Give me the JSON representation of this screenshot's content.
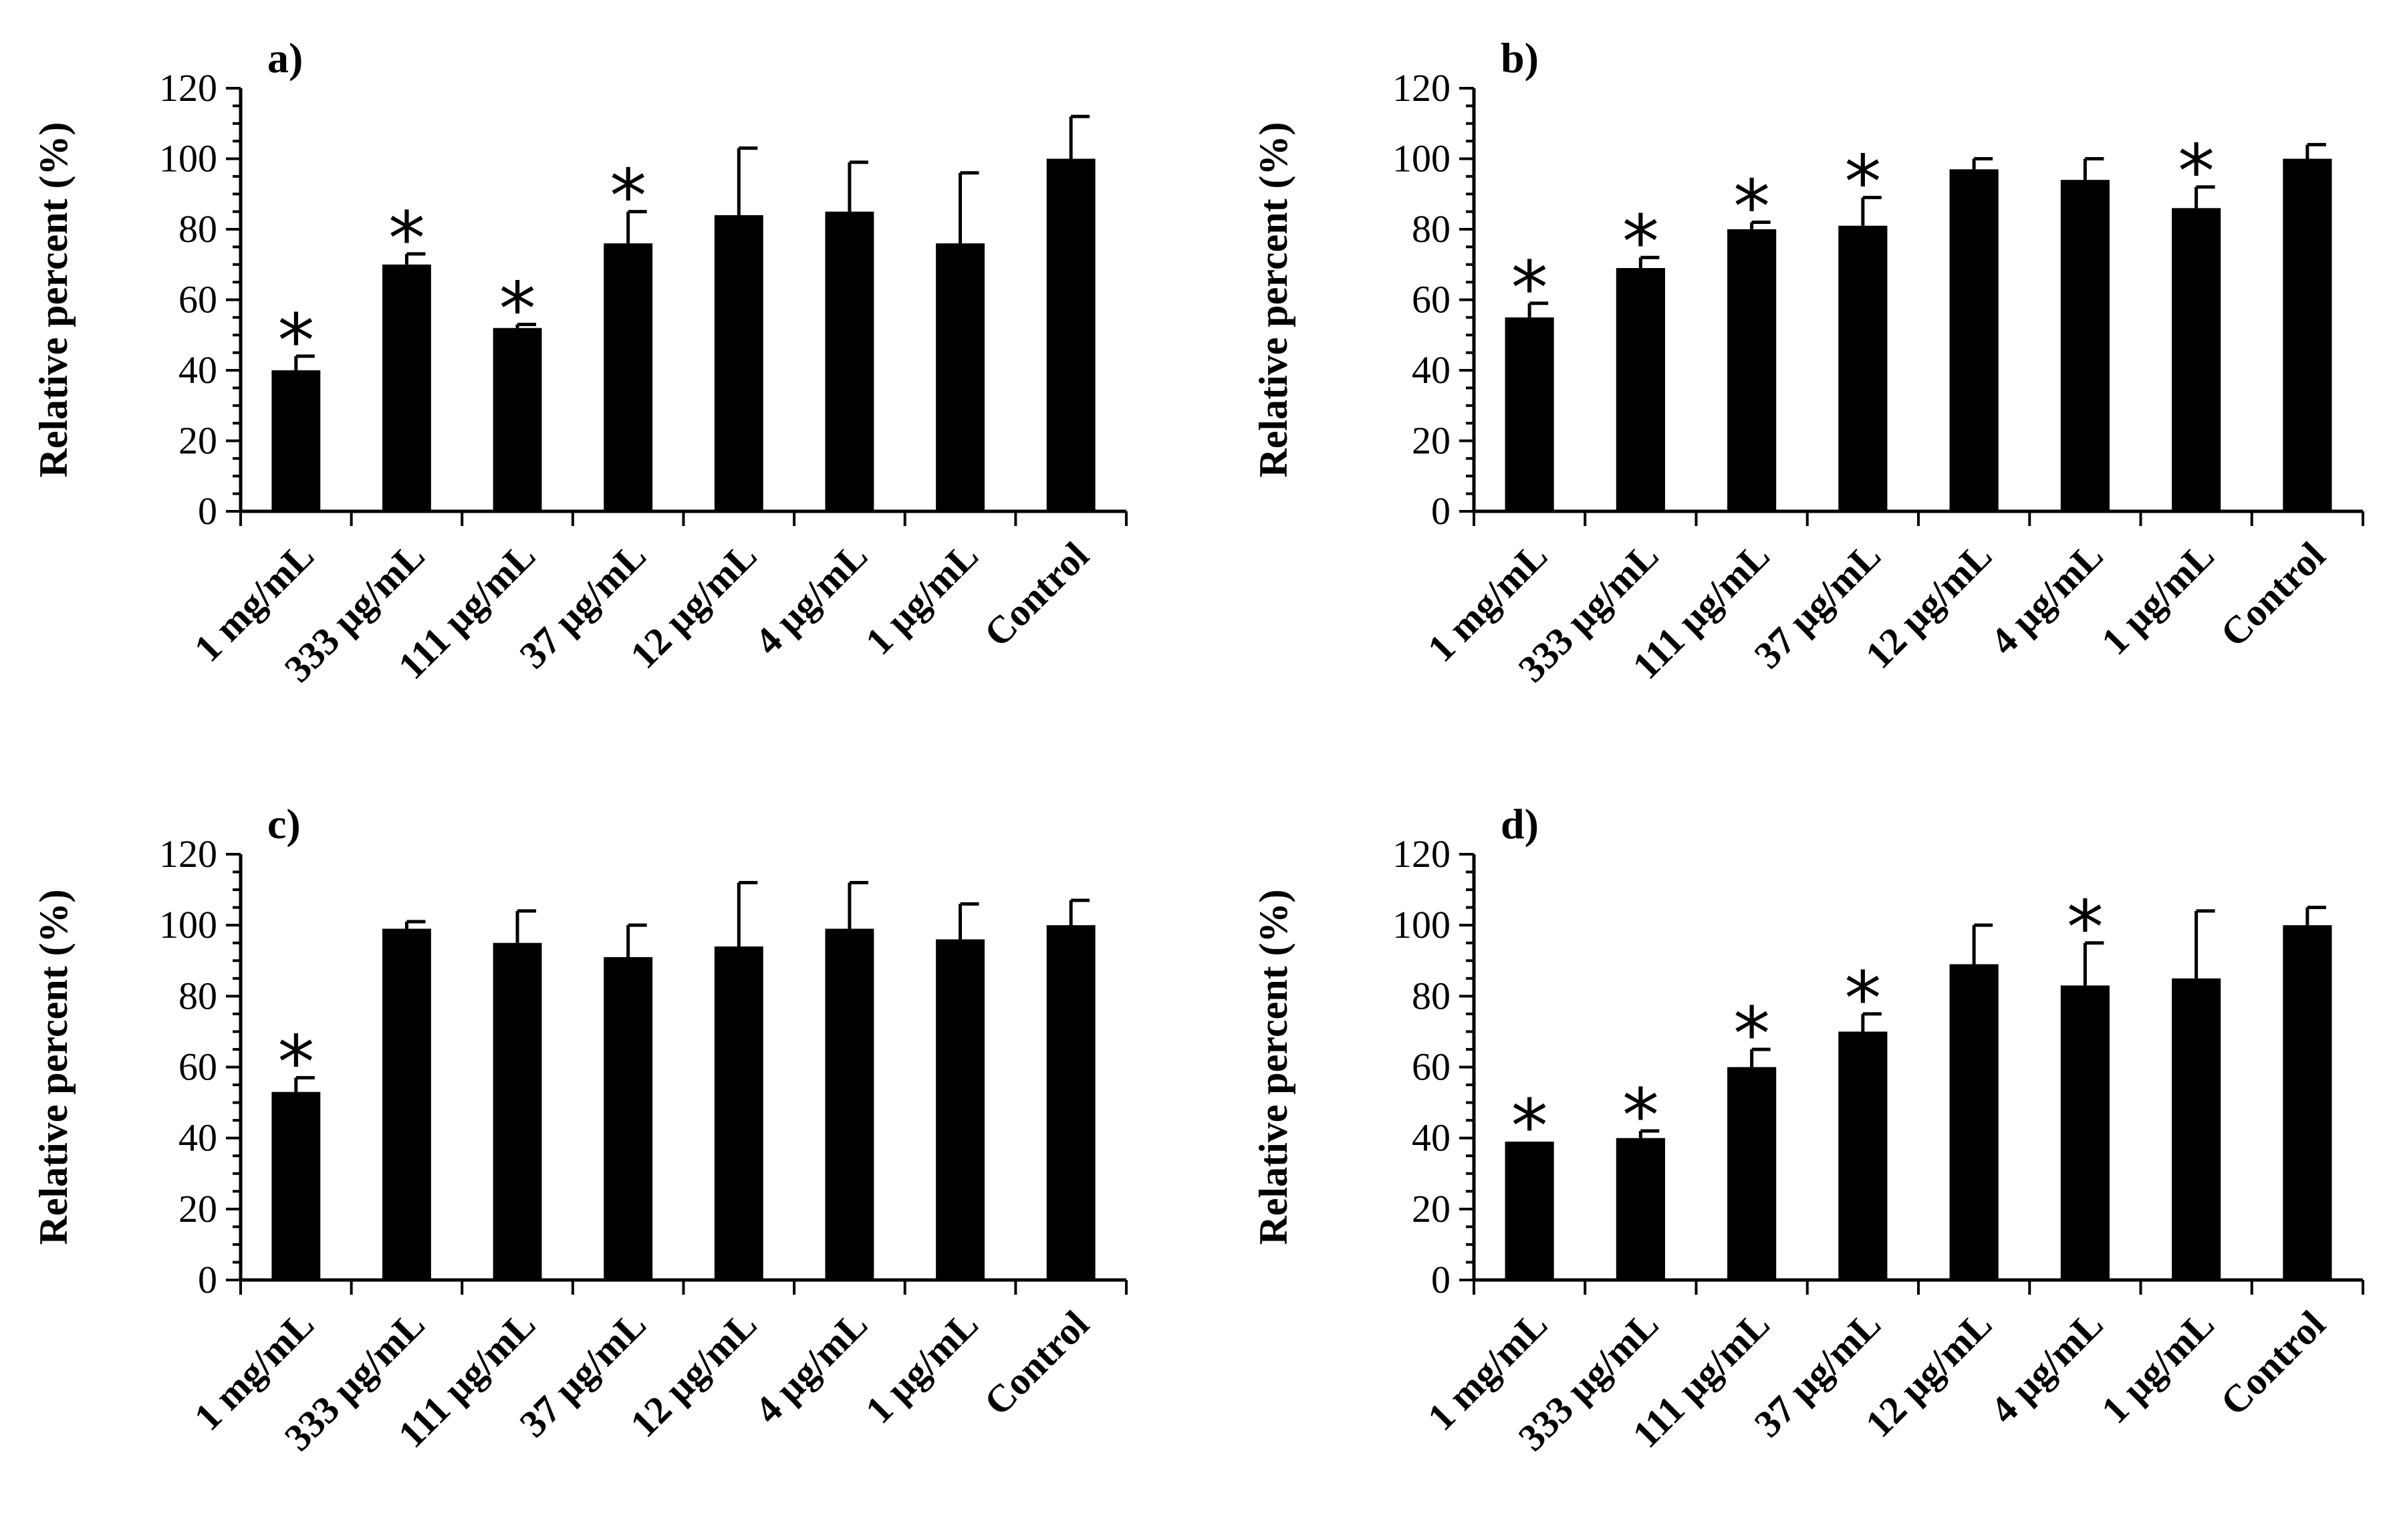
{
  "chart_data": [
    {
      "type": "bar",
      "panel": "a)",
      "categories": [
        "1 mg/mL",
        "333 µg/mL",
        "111 µg/mL",
        "37 µg/mL",
        "12 µg/mL",
        "4 µg/mL",
        "1 µg/mL",
        "Control"
      ],
      "values": [
        40,
        70,
        52,
        76,
        84,
        85,
        76,
        100
      ],
      "errors": [
        4,
        3,
        1,
        9,
        19,
        14,
        20,
        12
      ],
      "significant": [
        true,
        true,
        true,
        true,
        false,
        false,
        false,
        false
      ],
      "significance_marker": "*",
      "ylabel": "Relative  percent (%)",
      "ylim": [
        0,
        120
      ],
      "yticks": [
        0,
        20,
        40,
        60,
        80,
        100,
        120
      ]
    },
    {
      "type": "bar",
      "panel": "b)",
      "categories": [
        "1 mg/mL",
        "333 µg/mL",
        "111 µg/mL",
        "37 µg/mL",
        "12 µg/mL",
        "4 µg/mL",
        "1 µg/mL",
        "Control"
      ],
      "values": [
        55,
        69,
        80,
        81,
        97,
        94,
        86,
        100
      ],
      "errors": [
        4,
        3,
        2,
        8,
        3,
        6,
        6,
        4
      ],
      "significant": [
        true,
        true,
        true,
        true,
        false,
        false,
        true,
        false
      ],
      "significance_marker": "*",
      "ylabel": "Relative  percent (%)",
      "ylim": [
        0,
        120
      ],
      "yticks": [
        0,
        20,
        40,
        60,
        80,
        100,
        120
      ]
    },
    {
      "type": "bar",
      "panel": "c)",
      "categories": [
        "1 mg/mL",
        "333 µg/mL",
        "111 µg/mL",
        "37 µg/mL",
        "12 µg/mL",
        "4 µg/mL",
        "1 µg/mL",
        "Control"
      ],
      "values": [
        53,
        99,
        95,
        91,
        94,
        99,
        96,
        100
      ],
      "errors": [
        4,
        2,
        9,
        9,
        18,
        13,
        10,
        7
      ],
      "significant": [
        true,
        false,
        false,
        false,
        false,
        false,
        false,
        false
      ],
      "significance_marker": "*",
      "ylabel": "Relative  percent (%)",
      "ylim": [
        0,
        120
      ],
      "yticks": [
        0,
        20,
        40,
        60,
        80,
        100,
        120
      ]
    },
    {
      "type": "bar",
      "panel": "d)",
      "categories": [
        "1 mg/mL",
        "333 µg/mL",
        "111 µg/mL",
        "37 µg/mL",
        "12 µg/mL",
        "4 µg/mL",
        "1 µg/mL",
        "Control"
      ],
      "values": [
        39,
        40,
        60,
        70,
        89,
        83,
        85,
        100
      ],
      "errors": [
        0,
        2,
        5,
        5,
        11,
        12,
        19,
        5
      ],
      "significant": [
        true,
        true,
        true,
        true,
        false,
        true,
        false,
        false
      ],
      "significance_marker": "*",
      "ylabel": "Relative  percent (%)",
      "ylim": [
        0,
        120
      ],
      "yticks": [
        0,
        20,
        40,
        60,
        80,
        100,
        120
      ]
    }
  ],
  "colors": {
    "bar": "#000000",
    "axis": "#000000",
    "background": "#ffffff"
  }
}
